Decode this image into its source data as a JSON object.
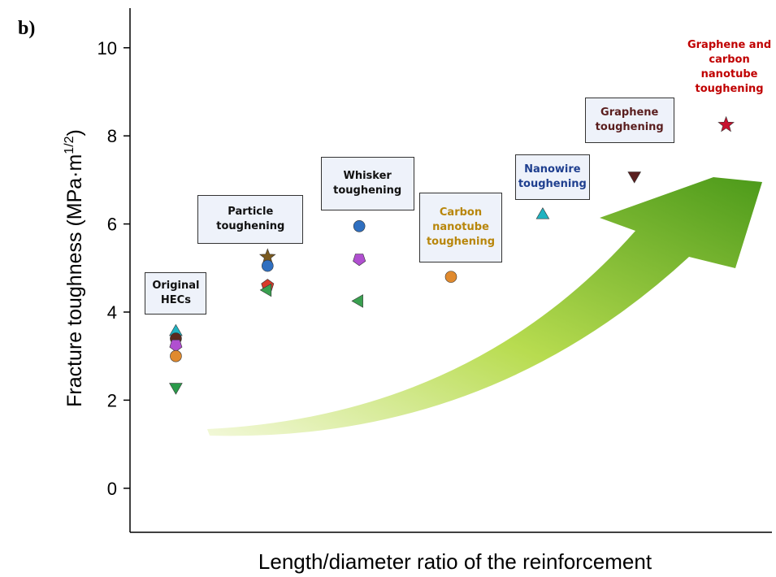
{
  "panel_label": "b)",
  "chart_data": {
    "type": "scatter",
    "ylabel": [
      "Fracture toughness (MPa·m",
      "1/2",
      ")"
    ],
    "xlabel": "Length/diameter ratio of the reinforcement",
    "categories": [
      "Original HECs",
      "Particle toughening",
      "Whisker toughening",
      "Carbon nanotube toughening",
      "Nanowire toughening",
      "Graphene toughening",
      "Graphene and carbon nanotube toughening"
    ],
    "label_colors": [
      "#111111",
      "#111111",
      "#111111",
      "#b8860b",
      "#1f3f8f",
      "#5a1e1e",
      "#c00000"
    ],
    "ylim": [
      -1,
      10.9
    ],
    "yticks": [
      0,
      2,
      4,
      6,
      8,
      10
    ],
    "series": [
      {
        "color": "#20b2c0",
        "marker": "triangle-up",
        "values": [
          3.55,
          null,
          null,
          null,
          6.2,
          null,
          null
        ]
      },
      {
        "color": "#5a2a1e",
        "marker": "circle",
        "values": [
          3.4,
          null,
          null,
          null,
          null,
          null,
          null
        ]
      },
      {
        "color": "#b04fd0",
        "marker": "pentagon-down",
        "values": [
          3.25,
          null,
          5.2,
          null,
          null,
          null,
          null
        ]
      },
      {
        "color": "#e08a2e",
        "marker": "circle",
        "values": [
          3.0,
          null,
          null,
          4.8,
          null,
          null,
          null
        ]
      },
      {
        "color": "#2a9a4a",
        "marker": "triangle-down",
        "values": [
          2.3,
          null,
          null,
          null,
          null,
          null,
          null
        ]
      },
      {
        "color": "#7a5a20",
        "marker": "star",
        "values": [
          null,
          5.25,
          null,
          null,
          null,
          null,
          null
        ]
      },
      {
        "color": "#2f6fc0",
        "marker": "circle",
        "values": [
          null,
          5.05,
          5.95,
          null,
          null,
          null,
          null
        ]
      },
      {
        "color": "#d83a2a",
        "marker": "pentagon",
        "values": [
          null,
          4.6,
          null,
          null,
          null,
          null,
          null
        ]
      },
      {
        "color": "#3aa050",
        "marker": "triangle-left",
        "values": [
          null,
          4.5,
          4.25,
          null,
          null,
          null,
          null
        ]
      },
      {
        "color": "#5a1e1e",
        "marker": "triangle-down",
        "values": [
          null,
          null,
          null,
          null,
          null,
          7.1,
          null
        ]
      },
      {
        "color": "#c8102e",
        "marker": "star",
        "values": [
          null,
          null,
          null,
          null,
          null,
          null,
          8.25
        ]
      }
    ]
  }
}
